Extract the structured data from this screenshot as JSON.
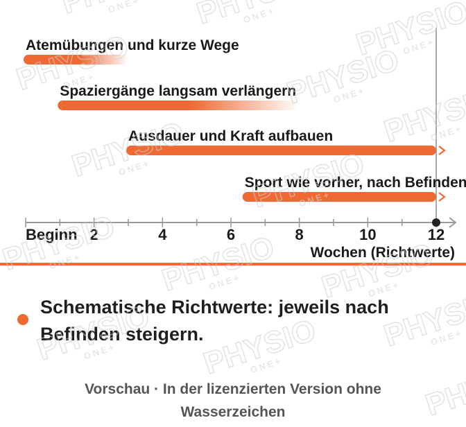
{
  "colors": {
    "accent": "#ef6a33",
    "axis": "#9a9a9a",
    "text": "#1a1a1a",
    "footer": "#555555",
    "watermark": "#cfcfcf"
  },
  "chart_data": {
    "type": "bar",
    "orientation": "horizontal-timeline",
    "xlabel": "Wochen (Richtwerte)",
    "xlim": [
      0,
      12
    ],
    "x_ticks": [
      {
        "value": 0,
        "label": "Beginn"
      },
      {
        "value": 2,
        "label": "2"
      },
      {
        "value": 4,
        "label": "4"
      },
      {
        "value": 6,
        "label": "6"
      },
      {
        "value": 8,
        "label": "8"
      },
      {
        "value": 10,
        "label": "10"
      },
      {
        "value": 12,
        "label": "12"
      }
    ],
    "reference_line": 12,
    "series": [
      {
        "label": "Atemübungen und kurze Wege",
        "start": 0,
        "end": 3,
        "fade_out": true,
        "continues": false
      },
      {
        "label": "Spaziergänge langsam verlängern",
        "start": 1,
        "end": 8,
        "fade_out": true,
        "continues": false
      },
      {
        "label": "Ausdauer und Kraft aufbauen",
        "start": 3,
        "end": 12,
        "fade_out": false,
        "continues": true
      },
      {
        "label": "Sport wie vorher, nach Befinden",
        "start": 6.4,
        "end": 12,
        "fade_out": false,
        "continues": true
      }
    ]
  },
  "note": {
    "text": "Schematische Richtwerte: jeweils nach Befinden steigern."
  },
  "footer": {
    "line1": "Vorschau · In der lizenzierten Version ohne",
    "line2": "Wasserzeichen"
  },
  "watermark": {
    "main": "PHYSIO",
    "sub": "ONE+"
  }
}
